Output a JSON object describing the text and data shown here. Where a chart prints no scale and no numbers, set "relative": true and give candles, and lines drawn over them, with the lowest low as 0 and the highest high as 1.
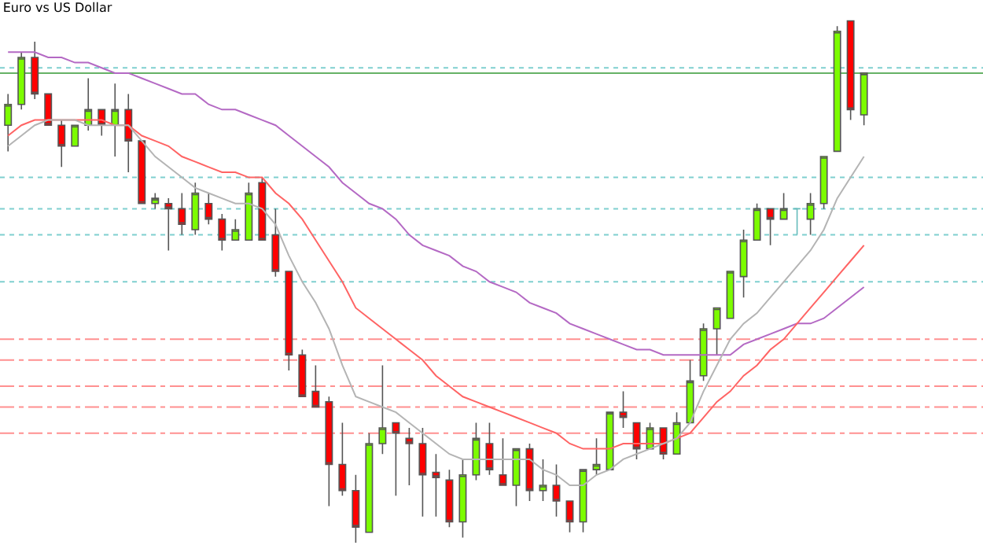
{
  "chart_data": {
    "type": "candlestick",
    "title": "Euro vs US Dollar",
    "relative": true,
    "categories": [
      null,
      null,
      null,
      null,
      null,
      null,
      null,
      null,
      null,
      null,
      null,
      null,
      null,
      null,
      null,
      null,
      null,
      null,
      null,
      null,
      null,
      null,
      null,
      null,
      null,
      null,
      null,
      null,
      null,
      null,
      null,
      null,
      null,
      null,
      null,
      null,
      null,
      null,
      null,
      null,
      null,
      null,
      null,
      null,
      null,
      null,
      null,
      null,
      null,
      null,
      null,
      null,
      null,
      null,
      null,
      null,
      null,
      null,
      null,
      null,
      null,
      null,
      null,
      null,
      null
    ],
    "ohlc": [
      [
        0.8,
        0.86,
        0.75,
        0.84
      ],
      [
        0.84,
        0.94,
        0.83,
        0.93
      ],
      [
        0.93,
        0.96,
        0.85,
        0.86
      ],
      [
        0.86,
        0.86,
        0.8,
        0.8
      ],
      [
        0.8,
        0.81,
        0.72,
        0.76
      ],
      [
        0.76,
        0.8,
        0.76,
        0.8
      ],
      [
        0.8,
        0.89,
        0.79,
        0.83
      ],
      [
        0.83,
        0.83,
        0.78,
        0.8
      ],
      [
        0.8,
        0.88,
        0.74,
        0.83
      ],
      [
        0.83,
        0.86,
        0.71,
        0.77
      ],
      [
        0.77,
        0.77,
        0.65,
        0.65
      ],
      [
        0.65,
        0.67,
        0.64,
        0.66
      ],
      [
        0.65,
        0.66,
        0.56,
        0.64
      ],
      [
        0.64,
        0.67,
        0.59,
        0.61
      ],
      [
        0.6,
        0.69,
        0.59,
        0.67
      ],
      [
        0.65,
        0.67,
        0.61,
        0.62
      ],
      [
        0.62,
        0.63,
        0.56,
        0.58
      ],
      [
        0.58,
        0.62,
        0.58,
        0.6
      ],
      [
        0.58,
        0.69,
        0.58,
        0.67
      ],
      [
        0.69,
        0.7,
        0.58,
        0.58
      ],
      [
        0.59,
        0.64,
        0.51,
        0.52
      ],
      [
        0.52,
        0.52,
        0.33,
        0.36
      ],
      [
        0.36,
        0.37,
        0.28,
        0.28
      ],
      [
        0.29,
        0.34,
        0.26,
        0.26
      ],
      [
        0.27,
        0.28,
        0.07,
        0.15
      ],
      [
        0.15,
        0.23,
        0.09,
        0.1
      ],
      [
        0.1,
        0.13,
        0.0,
        0.03
      ],
      [
        0.02,
        0.21,
        0.02,
        0.19
      ],
      [
        0.19,
        0.34,
        0.17,
        0.22
      ],
      [
        0.23,
        0.23,
        0.09,
        0.21
      ],
      [
        0.2,
        0.22,
        0.11,
        0.19
      ],
      [
        0.19,
        0.22,
        0.05,
        0.13
      ],
      [
        0.135,
        0.17,
        0.05,
        0.125
      ],
      [
        0.12,
        0.14,
        0.03,
        0.04
      ],
      [
        0.04,
        0.16,
        0.01,
        0.13
      ],
      [
        0.13,
        0.23,
        0.12,
        0.2
      ],
      [
        0.19,
        0.23,
        0.13,
        0.14
      ],
      [
        0.13,
        0.2,
        0.11,
        0.11
      ],
      [
        0.11,
        0.18,
        0.07,
        0.18
      ],
      [
        0.18,
        0.19,
        0.08,
        0.1
      ],
      [
        0.1,
        0.16,
        0.08,
        0.11
      ],
      [
        0.11,
        0.15,
        0.05,
        0.08
      ],
      [
        0.08,
        0.08,
        0.02,
        0.04
      ],
      [
        0.04,
        0.14,
        0.02,
        0.14
      ],
      [
        0.14,
        0.2,
        0.13,
        0.15
      ],
      [
        0.14,
        0.25,
        0.14,
        0.25
      ],
      [
        0.25,
        0.29,
        0.22,
        0.24
      ],
      [
        0.23,
        0.23,
        0.16,
        0.18
      ],
      [
        0.18,
        0.23,
        0.18,
        0.22
      ],
      [
        0.22,
        0.22,
        0.16,
        0.17
      ],
      [
        0.17,
        0.25,
        0.17,
        0.23
      ],
      [
        0.23,
        0.35,
        0.23,
        0.31
      ],
      [
        0.32,
        0.42,
        0.31,
        0.41
      ],
      [
        0.41,
        0.45,
        0.36,
        0.45
      ],
      [
        0.43,
        0.52,
        0.43,
        0.52
      ],
      [
        0.51,
        0.6,
        0.47,
        0.58
      ],
      [
        0.58,
        0.65,
        0.58,
        0.64
      ],
      [
        0.64,
        0.64,
        0.57,
        0.62
      ],
      [
        0.62,
        0.67,
        0.62,
        0.64
      ],
      [
        0.64,
        0.64,
        0.59,
        0.64
      ],
      [
        0.62,
        0.67,
        0.59,
        0.65
      ],
      [
        0.65,
        0.74,
        0.64,
        0.74
      ],
      [
        0.75,
        0.99,
        0.75,
        0.98
      ],
      [
        1.0,
        1.0,
        0.81,
        0.83
      ],
      [
        0.82,
        0.9,
        0.8,
        0.9
      ]
    ],
    "colors": [
      "#7cfc00",
      "#7cfc00",
      "#ff0000",
      "#ff0000",
      "#ff0000",
      "#7cfc00",
      "#7cfc00",
      "#ff0000",
      "#7cfc00",
      "#ff0000",
      "#ff0000",
      "#7cfc00",
      "#ff0000",
      "#ff0000",
      "#7cfc00",
      "#ff0000",
      "#ff0000",
      "#7cfc00",
      "#7cfc00",
      "#ff0000",
      "#ff0000",
      "#ff0000",
      "#ff0000",
      "#ff0000",
      "#ff0000",
      "#ff0000",
      "#ff0000",
      "#7cfc00",
      "#7cfc00",
      "#ff0000",
      "#ff0000",
      "#ff0000",
      "#ff0000",
      "#ff0000",
      "#7cfc00",
      "#7cfc00",
      "#ff0000",
      "#ff0000",
      "#7cfc00",
      "#ff0000",
      "#7cfc00",
      "#ff0000",
      "#ff0000",
      "#7cfc00",
      "#7cfc00",
      "#7cfc00",
      "#ff0000",
      "#ff0000",
      "#7cfc00",
      "#ff0000",
      "#7cfc00",
      "#7cfc00",
      "#7cfc00",
      "#7cfc00",
      "#7cfc00",
      "#7cfc00",
      "#7cfc00",
      "#ff0000",
      "#7cfc00",
      "#66bbbb",
      "#7cfc00",
      "#7cfc00",
      "#7cfc00",
      "#ff0000",
      "#7cfc00"
    ],
    "series": [
      {
        "type": "line",
        "color": "#b469c4",
        "values": [
          0.94,
          0.94,
          0.94,
          0.93,
          0.93,
          0.92,
          0.92,
          0.91,
          0.9,
          0.9,
          0.89,
          0.88,
          0.87,
          0.86,
          0.86,
          0.84,
          0.83,
          0.83,
          0.82,
          0.81,
          0.8,
          0.78,
          0.76,
          0.74,
          0.72,
          0.69,
          0.67,
          0.65,
          0.64,
          0.62,
          0.59,
          0.57,
          0.56,
          0.55,
          0.53,
          0.52,
          0.5,
          0.49,
          0.48,
          0.46,
          0.45,
          0.44,
          0.42,
          0.41,
          0.4,
          0.39,
          0.38,
          0.37,
          0.37,
          0.36,
          0.36,
          0.36,
          0.36,
          0.36,
          0.36,
          0.38,
          0.39,
          0.4,
          0.41,
          0.42,
          0.42,
          0.43,
          0.45,
          0.47,
          0.49
        ]
      },
      {
        "type": "line",
        "color": "#ff6464",
        "values": [
          0.78,
          0.8,
          0.81,
          0.81,
          0.81,
          0.81,
          0.81,
          0.81,
          0.8,
          0.8,
          0.78,
          0.77,
          0.76,
          0.74,
          0.73,
          0.72,
          0.71,
          0.71,
          0.7,
          0.7,
          0.67,
          0.65,
          0.62,
          0.58,
          0.54,
          0.5,
          0.45,
          0.43,
          0.41,
          0.39,
          0.37,
          0.35,
          0.32,
          0.3,
          0.28,
          0.27,
          0.26,
          0.25,
          0.24,
          0.23,
          0.22,
          0.21,
          0.19,
          0.18,
          0.18,
          0.18,
          0.19,
          0.19,
          0.19,
          0.19,
          0.2,
          0.21,
          0.24,
          0.27,
          0.29,
          0.32,
          0.34,
          0.37,
          0.39,
          0.42,
          0.45,
          0.48,
          0.51,
          0.54,
          0.57
        ]
      },
      {
        "type": "line",
        "color": "#b4b4b4",
        "values": [
          0.76,
          0.78,
          0.8,
          0.81,
          0.81,
          0.81,
          0.8,
          0.8,
          0.8,
          0.8,
          0.77,
          0.74,
          0.72,
          0.7,
          0.68,
          0.67,
          0.66,
          0.65,
          0.65,
          0.64,
          0.61,
          0.55,
          0.5,
          0.46,
          0.41,
          0.34,
          0.28,
          0.27,
          0.26,
          0.25,
          0.23,
          0.21,
          0.19,
          0.17,
          0.16,
          0.16,
          0.16,
          0.16,
          0.16,
          0.16,
          0.14,
          0.13,
          0.11,
          0.11,
          0.13,
          0.14,
          0.16,
          0.17,
          0.18,
          0.19,
          0.2,
          0.23,
          0.29,
          0.34,
          0.39,
          0.42,
          0.44,
          0.47,
          0.5,
          0.53,
          0.56,
          0.6,
          0.66,
          0.7,
          0.74
        ]
      }
    ],
    "ref_lines": [
      {
        "axis": "y",
        "value": 0.91,
        "color": "#7fcfcf",
        "line_style": "dotted"
      },
      {
        "axis": "y",
        "value": 0.9,
        "color": "#66b266",
        "line_style": "solid"
      },
      {
        "axis": "y",
        "value": 0.7,
        "color": "#7fcfcf",
        "line_style": "dotted"
      },
      {
        "axis": "y",
        "value": 0.64,
        "color": "#7fcfcf",
        "line_style": "dotted"
      },
      {
        "axis": "y",
        "value": 0.59,
        "color": "#7fcfcf",
        "line_style": "dotted"
      },
      {
        "axis": "y",
        "value": 0.5,
        "color": "#7fcfcf",
        "line_style": "dotted"
      },
      {
        "axis": "y",
        "value": 0.39,
        "color": "#ff9090",
        "line_style": "dashed"
      },
      {
        "axis": "y",
        "value": 0.35,
        "color": "#ff9090",
        "line_style": "dashed"
      },
      {
        "axis": "y",
        "value": 0.3,
        "color": "#ff9090",
        "line_style": "dashed"
      },
      {
        "axis": "y",
        "value": 0.26,
        "color": "#ff9090",
        "line_style": "dashed"
      },
      {
        "axis": "y",
        "value": 0.21,
        "color": "#ff9090",
        "line_style": "dashed"
      }
    ]
  }
}
